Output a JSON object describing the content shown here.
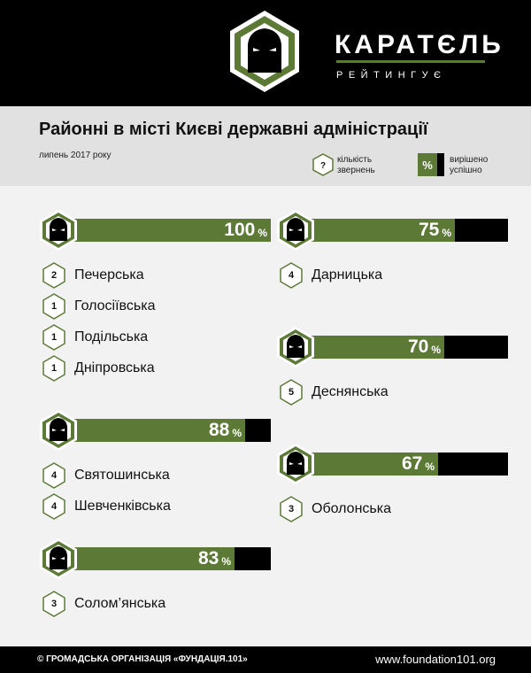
{
  "brand": {
    "name": "КАРАТЄЛЬ",
    "subtitle": "РЕЙТИНГУЄ"
  },
  "title": "Районні в місті Києві державні адміністрації",
  "date": "липень 2017 року",
  "legend": {
    "count_symbol": "?",
    "count_label": "кількість звернень",
    "pct_symbol": "%",
    "pct_label": "вирішено успішно"
  },
  "colors": {
    "accent": "#5c7a36",
    "bar_track": "#000000",
    "header": "#000000",
    "title_band": "#e1e1e1",
    "background": "#f2f2f2"
  },
  "chart_data": {
    "type": "bar",
    "groups": [
      {
        "percent": 100,
        "percent_label": "100",
        "pct_sign": "%",
        "districts": [
          {
            "name": "Печерська",
            "appeals": 2
          },
          {
            "name": "Голосіївська",
            "appeals": 1
          },
          {
            "name": "Подільська",
            "appeals": 1
          },
          {
            "name": "Дніпровська",
            "appeals": 1
          }
        ]
      },
      {
        "percent": 88,
        "percent_label": "88",
        "pct_sign": "%",
        "districts": [
          {
            "name": "Святошинська",
            "appeals": 4
          },
          {
            "name": "Шевченківська",
            "appeals": 4
          }
        ]
      },
      {
        "percent": 83,
        "percent_label": "83",
        "pct_sign": "%",
        "districts": [
          {
            "name": "Солом’янська",
            "appeals": 3
          }
        ]
      },
      {
        "percent": 75,
        "percent_label": "75",
        "pct_sign": "%",
        "districts": [
          {
            "name": "Дарницька",
            "appeals": 4
          }
        ]
      },
      {
        "percent": 70,
        "percent_label": "70",
        "pct_sign": "%",
        "districts": [
          {
            "name": "Деснянська",
            "appeals": 5
          }
        ]
      },
      {
        "percent": 67,
        "percent_label": "67",
        "pct_sign": "%",
        "districts": [
          {
            "name": "Оболонська",
            "appeals": 3
          }
        ]
      }
    ]
  },
  "footer": {
    "left": "© ГРОМАДСЬКА ОРГАНІЗАЦІЯ «ФУНДАЦІЯ.101»",
    "right": "www.foundation101.org"
  }
}
